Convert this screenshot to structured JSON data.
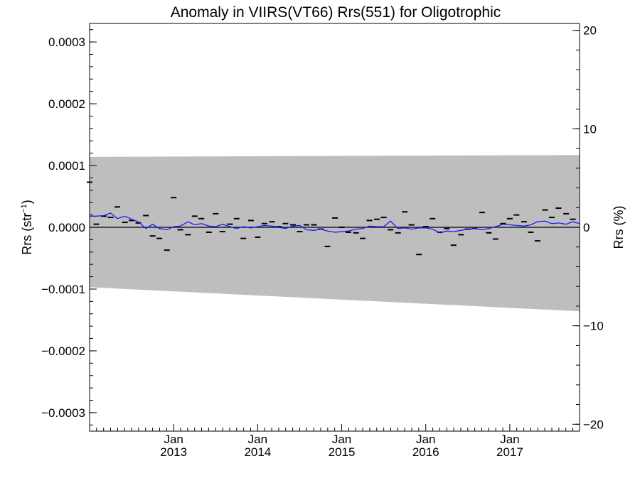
{
  "chart_data": {
    "type": "line",
    "title": "Anomaly in VIIRS(VT66) Rrs(551) for Oligotrophic",
    "ylabel_main": "Rrs (str",
    "ylabel_sup": "−1",
    "ylabel_close": ")",
    "ylabel_right": "Rrs (%)",
    "ylim": [
      -0.00033,
      0.00033
    ],
    "yticks": [
      {
        "value": 0.0003,
        "label": "0.0003"
      },
      {
        "value": 0.0002,
        "label": "0.0002"
      },
      {
        "value": 0.0001,
        "label": "0.0001"
      },
      {
        "value": 0.0,
        "label": "0.0000"
      },
      {
        "value": -0.0001,
        "label": "−0.0001"
      },
      {
        "value": -0.0002,
        "label": "−0.0002"
      },
      {
        "value": -0.0003,
        "label": "−0.0003"
      }
    ],
    "y2lim": [
      -20.7,
      20.7
    ],
    "y2ticks": [
      {
        "value": 20,
        "label": "20"
      },
      {
        "value": 10,
        "label": "10"
      },
      {
        "value": 0,
        "label": "0"
      },
      {
        "value": -10,
        "label": "−10"
      },
      {
        "value": -20,
        "label": "−20"
      }
    ],
    "xlim": [
      2012.0,
      2017.83
    ],
    "xticks": [
      {
        "value": 2013.0,
        "month": "Jan",
        "year": "2013"
      },
      {
        "value": 2014.0,
        "month": "Jan",
        "year": "2014"
      },
      {
        "value": 2015.0,
        "month": "Jan",
        "year": "2015"
      },
      {
        "value": 2016.0,
        "month": "Jan",
        "year": "2016"
      },
      {
        "value": 2017.0,
        "month": "Jan",
        "year": "2017"
      }
    ],
    "band": {
      "x": [
        2012.0,
        2017.83
      ],
      "upper": [
        0.000114,
        0.000117
      ],
      "lower": [
        -9.7e-05,
        -0.000136
      ],
      "color": "#bebebe"
    },
    "zero_line": 0.0,
    "series": [
      {
        "style": "dash-markers",
        "color": "#000000",
        "x": [
          2012.0,
          2012.08,
          2012.17,
          2012.25,
          2012.33,
          2012.42,
          2012.5,
          2012.58,
          2012.67,
          2012.75,
          2012.83,
          2012.92,
          2013.0,
          2013.08,
          2013.17,
          2013.25,
          2013.33,
          2013.42,
          2013.5,
          2013.58,
          2013.67,
          2013.75,
          2013.83,
          2013.92,
          2014.0,
          2014.08,
          2014.17,
          2014.25,
          2014.33,
          2014.42,
          2014.5,
          2014.58,
          2014.67,
          2014.75,
          2014.83,
          2014.92,
          2015.0,
          2015.08,
          2015.17,
          2015.25,
          2015.33,
          2015.42,
          2015.5,
          2015.58,
          2015.67,
          2015.75,
          2015.83,
          2015.92,
          2016.0,
          2016.08,
          2016.17,
          2016.25,
          2016.33,
          2016.42,
          2016.5,
          2016.58,
          2016.67,
          2016.75,
          2016.83,
          2016.92,
          2017.0,
          2017.08,
          2017.17,
          2017.25,
          2017.33,
          2017.42,
          2017.5,
          2017.58,
          2017.67,
          2017.75
        ],
        "values": [
          7.3e-05,
          5e-06,
          1.8e-05,
          1.6e-05,
          3.3e-05,
          8e-06,
          1.1e-05,
          7e-06,
          1.9e-05,
          -1.4e-05,
          -1.8e-05,
          -3.7e-05,
          4.8e-05,
          -4e-06,
          -1.2e-05,
          1.8e-05,
          1.4e-05,
          -8e-06,
          2.2e-05,
          -7e-06,
          5e-06,
          1.4e-05,
          -1.8e-05,
          1.1e-05,
          -1.6e-05,
          6e-06,
          9e-06,
          1e-06,
          6e-06,
          4e-06,
          -7e-06,
          4e-06,
          4e-06,
          -3e-06,
          -3.1e-05,
          1.5e-05,
          0.0,
          -8e-06,
          -9e-06,
          -1.8e-05,
          1.1e-05,
          1.3e-05,
          1.6e-05,
          -4e-06,
          -9e-06,
          2.5e-05,
          4e-06,
          -4.4e-05,
          1e-06,
          1.4e-05,
          -8e-06,
          -2e-06,
          -2.9e-05,
          -1.2e-05,
          -3e-06,
          -2e-06,
          2.4e-05,
          -9e-06,
          -1.9e-05,
          6e-06,
          1.4e-05,
          2e-05,
          9e-06,
          -8e-06,
          -2.2e-05,
          2.8e-05,
          1.6e-05,
          3.1e-05,
          2.2e-05,
          1.3e-05
        ]
      },
      {
        "style": "line",
        "color": "#1a1aff",
        "x": [
          2012.0,
          2012.08,
          2012.17,
          2012.25,
          2012.33,
          2012.42,
          2012.5,
          2012.58,
          2012.67,
          2012.75,
          2012.83,
          2012.92,
          2013.0,
          2013.08,
          2013.17,
          2013.25,
          2013.33,
          2013.42,
          2013.5,
          2013.58,
          2013.67,
          2013.75,
          2013.83,
          2013.92,
          2014.0,
          2014.08,
          2014.17,
          2014.25,
          2014.33,
          2014.42,
          2014.5,
          2014.58,
          2014.67,
          2014.75,
          2014.83,
          2014.92,
          2015.0,
          2015.08,
          2015.17,
          2015.25,
          2015.33,
          2015.42,
          2015.5,
          2015.58,
          2015.67,
          2015.75,
          2015.83,
          2015.92,
          2016.0,
          2016.08,
          2016.17,
          2016.25,
          2016.33,
          2016.42,
          2016.5,
          2016.58,
          2016.67,
          2016.75,
          2016.83,
          2016.92,
          2017.0,
          2017.08,
          2017.17,
          2017.25,
          2017.33,
          2017.42,
          2017.5,
          2017.58,
          2017.67,
          2017.75,
          2017.83
        ],
        "values": [
          1.8e-05,
          1.8e-05,
          1.9e-05,
          2.3e-05,
          1.4e-05,
          1.8e-05,
          1.3e-05,
          9e-06,
          -2e-06,
          5e-06,
          -2e-06,
          -4e-06,
          1e-06,
          2e-06,
          9e-06,
          4e-06,
          6e-06,
          2e-06,
          1e-06,
          5e-06,
          1e-06,
          -2e-06,
          1e-06,
          -1e-06,
          1e-06,
          3e-06,
          2e-06,
          0.0,
          -2e-06,
          2e-06,
          3e-06,
          -4e-06,
          -5e-06,
          -3e-06,
          -6e-06,
          -8e-06,
          -7e-06,
          -6e-06,
          -3e-06,
          -2e-06,
          2e-06,
          1e-06,
          1e-06,
          1e-05,
          -2e-06,
          -1e-06,
          -3e-06,
          -1e-06,
          -1e-06,
          -3e-06,
          -9e-06,
          -6e-06,
          -7e-06,
          -5e-06,
          -3e-06,
          -2e-06,
          -4e-06,
          -2e-06,
          1e-06,
          5e-06,
          4e-06,
          3e-06,
          2e-06,
          4e-06,
          9e-06,
          1e-05,
          6e-06,
          7e-06,
          5e-06,
          9e-06,
          6e-06
        ]
      }
    ]
  }
}
